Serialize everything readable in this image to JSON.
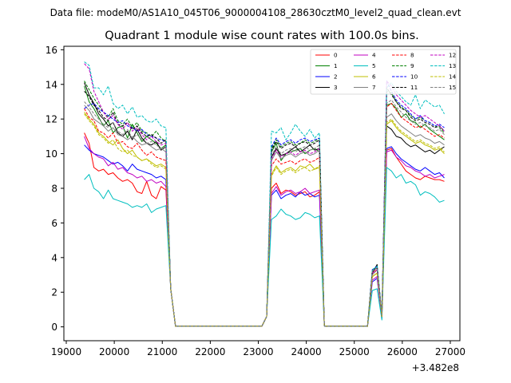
{
  "figure": {
    "suptitle": "Data file: modeM0/AS1A10_045T06_9000004108_28630cztM0_level2_quad_clean.evt"
  },
  "chart_data": {
    "type": "line",
    "title": "Quadrant 1 module wise count rates with 100.0s bins.",
    "xlabel": "",
    "ylabel": "",
    "x_offset_label": "+3.482e8",
    "xlim": [
      18950,
      27200
    ],
    "ylim": [
      -0.8,
      16.2
    ],
    "x_ticks": [
      19000,
      20000,
      21000,
      22000,
      23000,
      24000,
      25000,
      26000,
      27000
    ],
    "x_tick_labels": [
      "19000",
      "20000",
      "21000",
      "22000",
      "23000",
      "24000",
      "25000",
      "26000",
      "27000"
    ],
    "y_ticks": [
      0,
      2,
      4,
      6,
      8,
      10,
      12,
      14,
      16
    ],
    "y_tick_labels": [
      "0",
      "2",
      "4",
      "6",
      "8",
      "10",
      "12",
      "14",
      "16"
    ],
    "legend_position": "top-right",
    "time_segments": [
      {
        "start": 19375,
        "end": 21175
      },
      {
        "start": 21175,
        "end": 23275
      },
      {
        "start": 23275,
        "end": 24375
      },
      {
        "start": 24375,
        "end": 25375
      },
      {
        "start": 25375,
        "end": 25675
      },
      {
        "start": 25675,
        "end": 26875
      }
    ],
    "series": [
      {
        "name": "0",
        "color": "#ff0000",
        "dash": "solid",
        "seg1": [
          11.2,
          10.6,
          9.2,
          9.0,
          9.1,
          8.8,
          8.9,
          8.6,
          8.4,
          8.5,
          8.3,
          7.8,
          7.7,
          8.4,
          7.6,
          7.4,
          8.1,
          7.9,
          7.2
        ],
        "seg3": [
          8.0,
          8.3,
          7.7,
          7.9,
          7.8,
          7.6,
          7.7,
          7.8,
          7.5,
          7.6,
          7.8,
          7.2
        ],
        "seg5": [
          2.6,
          2.9,
          3.1,
          0.6
        ],
        "seg6": [
          10.2,
          10.3,
          9.8,
          9.4,
          9.0,
          8.8,
          8.6,
          8.5,
          8.7,
          8.6,
          8.5,
          8.5,
          8.4
        ]
      },
      {
        "name": "1",
        "color": "#008000",
        "dash": "solid",
        "seg1": [
          13.9,
          13.0,
          12.6,
          12.1,
          11.6,
          11.9,
          11.2,
          11.5,
          11.6,
          10.9,
          11.7,
          11.2,
          10.7,
          11.0,
          10.8,
          10.6,
          10.3,
          10.5,
          9.9
        ],
        "seg3": [
          10.1,
          10.6,
          9.6,
          10.0,
          10.1,
          10.2,
          10.3,
          10.0,
          10.2,
          10.3,
          10.1,
          10.4
        ],
        "seg5": [
          2.9,
          3.2,
          3.4,
          0.7
        ],
        "seg6": [
          12.8,
          12.9,
          12.6,
          12.1,
          12.3,
          11.9,
          11.8,
          11.5,
          11.7,
          11.4,
          11.2,
          11.0,
          10.8
        ]
      },
      {
        "name": "2",
        "color": "#0000ff",
        "dash": "solid",
        "seg1": [
          10.5,
          10.2,
          10.0,
          9.9,
          9.8,
          9.6,
          9.4,
          9.5,
          9.3,
          9.0,
          9.4,
          9.1,
          9.0,
          8.9,
          8.8,
          8.6,
          8.7,
          8.5,
          8.2
        ],
        "seg3": [
          7.6,
          7.9,
          7.4,
          7.6,
          7.7,
          7.5,
          7.8,
          7.6,
          7.7,
          7.5,
          7.6,
          7.8
        ],
        "seg5": [
          2.3,
          2.6,
          2.8,
          0.5
        ],
        "seg6": [
          10.3,
          10.4,
          10.0,
          9.7,
          9.5,
          9.3,
          9.1,
          9.0,
          9.2,
          9.0,
          8.8,
          8.9,
          8.6
        ]
      },
      {
        "name": "3",
        "color": "#000000",
        "dash": "solid",
        "seg1": [
          14.1,
          13.4,
          12.9,
          12.3,
          12.0,
          11.6,
          11.8,
          11.2,
          11.0,
          11.3,
          10.8,
          11.4,
          10.9,
          10.6,
          10.5,
          10.7,
          10.2,
          10.4,
          10.1
        ],
        "seg3": [
          9.8,
          10.3,
          9.9,
          10.0,
          10.2,
          10.4,
          10.1,
          10.3,
          10.5,
          10.2,
          10.3,
          10.6
        ],
        "seg5": [
          2.8,
          3.1,
          3.6,
          0.7
        ],
        "seg6": [
          11.6,
          11.4,
          11.0,
          10.9,
          10.6,
          10.4,
          10.5,
          10.3,
          10.1,
          10.2,
          10.0,
          10.2,
          10.4
        ]
      },
      {
        "name": "4",
        "color": "#c000c0",
        "dash": "solid",
        "seg1": [
          11.0,
          10.3,
          10.0,
          9.8,
          9.7,
          9.3,
          9.5,
          9.1,
          9.2,
          8.9,
          8.8,
          8.6,
          8.7,
          8.4,
          8.5,
          8.3,
          8.4,
          8.1,
          7.9
        ],
        "seg3": [
          7.7,
          8.1,
          7.6,
          7.8,
          7.9,
          7.7,
          7.8,
          8.0,
          7.7,
          7.8,
          7.9,
          7.6
        ],
        "seg5": [
          2.4,
          2.7,
          2.9,
          0.5
        ],
        "seg6": [
          10.1,
          10.2,
          9.8,
          9.6,
          9.3,
          9.2,
          9.0,
          8.9,
          8.7,
          8.8,
          8.6,
          8.7,
          8.8
        ]
      },
      {
        "name": "5",
        "color": "#00bfbf",
        "dash": "solid",
        "seg1": [
          8.5,
          8.8,
          8.0,
          7.8,
          7.4,
          7.9,
          7.4,
          7.3,
          7.2,
          7.1,
          6.9,
          7.0,
          6.9,
          7.1,
          6.6,
          6.8,
          6.9,
          7.0,
          6.8
        ],
        "seg3": [
          6.2,
          6.4,
          6.8,
          6.5,
          6.4,
          6.2,
          6.3,
          6.6,
          6.5,
          6.3,
          6.4,
          6.0
        ],
        "seg5": [
          1.9,
          2.1,
          2.2,
          0.4
        ],
        "seg6": [
          9.2,
          9.0,
          8.6,
          8.8,
          8.3,
          8.4,
          8.2,
          7.6,
          7.8,
          7.7,
          7.5,
          7.2,
          7.3
        ]
      },
      {
        "name": "6",
        "color": "#bfbf00",
        "dash": "solid",
        "seg1": [
          12.4,
          12.0,
          11.7,
          11.2,
          11.0,
          10.7,
          10.5,
          10.8,
          10.3,
          10.0,
          10.2,
          9.8,
          9.6,
          9.7,
          9.5,
          9.3,
          9.4,
          9.2,
          9.0
        ],
        "seg3": [
          8.8,
          9.3,
          8.9,
          9.1,
          9.2,
          9.0,
          9.3,
          9.2,
          9.4,
          9.1,
          9.2,
          9.0
        ],
        "seg5": [
          2.6,
          2.9,
          3.1,
          0.6
        ],
        "seg6": [
          11.7,
          11.9,
          11.5,
          11.2,
          11.0,
          10.8,
          10.6,
          10.7,
          10.5,
          10.4,
          10.2,
          10.3,
          10.0
        ]
      },
      {
        "name": "7",
        "color": "#808080",
        "dash": "solid",
        "seg1": [
          12.8,
          12.5,
          12.0,
          11.8,
          11.6,
          11.3,
          11.5,
          11.1,
          11.0,
          10.8,
          11.0,
          10.7,
          10.5,
          10.6,
          10.4,
          10.2,
          10.3,
          10.1,
          10.0
        ],
        "seg3": [
          9.6,
          10.1,
          9.7,
          9.9,
          10.0,
          9.8,
          10.0,
          10.1,
          9.9,
          10.0,
          10.2,
          9.9
        ],
        "seg5": [
          2.7,
          3.0,
          3.3,
          0.6
        ],
        "seg6": [
          12.1,
          12.3,
          11.9,
          11.6,
          11.4,
          11.2,
          11.0,
          11.1,
          10.9,
          10.8,
          10.6,
          10.7,
          10.5
        ]
      },
      {
        "name": "8",
        "color": "#ff0000",
        "dash": "dashed",
        "seg1": [
          12.6,
          12.1,
          11.9,
          11.3,
          11.2,
          10.9,
          11.2,
          10.6,
          10.7,
          10.4,
          10.3,
          10.6,
          10.2,
          9.9,
          10.1,
          9.8,
          9.7,
          9.6,
          9.4
        ],
        "seg3": [
          9.3,
          9.7,
          9.4,
          9.5,
          9.6,
          9.4,
          9.6,
          9.7,
          9.5,
          9.6,
          9.8,
          9.5
        ],
        "seg5": [
          2.8,
          3.1,
          3.3,
          0.6
        ],
        "seg6": [
          12.7,
          12.9,
          12.5,
          12.1,
          11.9,
          11.7,
          11.5,
          11.6,
          11.4,
          11.2,
          11.0,
          11.1,
          10.9
        ]
      },
      {
        "name": "9",
        "color": "#008000",
        "dash": "dashed",
        "seg1": [
          14.2,
          13.7,
          13.2,
          12.8,
          12.4,
          12.1,
          12.6,
          11.9,
          11.7,
          12.0,
          11.5,
          11.8,
          11.3,
          11.2,
          11.0,
          11.3,
          10.9,
          10.7,
          10.5
        ],
        "seg3": [
          10.3,
          10.8,
          10.4,
          10.6,
          10.7,
          10.5,
          10.6,
          10.8,
          10.6,
          10.7,
          10.9,
          10.6
        ],
        "seg5": [
          3.0,
          3.3,
          3.5,
          0.7
        ],
        "seg6": [
          13.6,
          13.5,
          13.0,
          12.7,
          12.5,
          12.2,
          12.0,
          12.1,
          11.9,
          11.8,
          11.6,
          11.5,
          11.2
        ]
      },
      {
        "name": "10",
        "color": "#0000ff",
        "dash": "dashed",
        "seg1": [
          12.6,
          12.8,
          12.9,
          12.6,
          12.4,
          12.2,
          12.0,
          11.8,
          11.9,
          11.6,
          11.5,
          11.3,
          11.4,
          11.1,
          11.0,
          10.9,
          10.8,
          10.7,
          10.6
        ],
        "seg3": [
          10.4,
          10.9,
          10.5,
          10.7,
          10.8,
          10.6,
          10.8,
          10.9,
          10.7,
          10.8,
          10.9,
          10.6
        ],
        "seg5": [
          3.0,
          3.3,
          3.5,
          0.7
        ],
        "seg6": [
          14.2,
          13.6,
          13.1,
          12.8,
          12.6,
          12.3,
          12.0,
          12.2,
          11.9,
          11.8,
          11.6,
          11.7,
          11.5
        ]
      },
      {
        "name": "11",
        "color": "#000000",
        "dash": "dashed",
        "seg1": [
          13.6,
          13.3,
          12.8,
          12.5,
          12.1,
          11.9,
          12.4,
          11.7,
          11.6,
          11.8,
          11.4,
          11.6,
          11.2,
          11.0,
          11.1,
          10.9,
          10.6,
          10.8,
          10.6
        ],
        "seg3": [
          10.2,
          10.7,
          10.3,
          10.5,
          10.6,
          10.4,
          10.6,
          10.7,
          10.5,
          10.6,
          10.8,
          10.5
        ],
        "seg5": [
          2.9,
          3.2,
          3.4,
          0.7
        ],
        "seg6": [
          13.8,
          13.4,
          13.0,
          12.6,
          12.5,
          12.1,
          11.9,
          12.0,
          11.8,
          11.7,
          11.5,
          11.6,
          11.3
        ]
      },
      {
        "name": "12",
        "color": "#c000c0",
        "dash": "dashed",
        "seg1": [
          15.2,
          14.9,
          13.6,
          13.0,
          12.4,
          12.0,
          12.2,
          11.7,
          11.4,
          11.8,
          11.3,
          11.5,
          11.1,
          10.8,
          11.0,
          10.7,
          10.5,
          10.6,
          10.3
        ],
        "seg3": [
          9.7,
          10.2,
          9.8,
          10.0,
          10.1,
          9.9,
          10.1,
          10.2,
          10.0,
          10.1,
          10.3,
          10.0
        ],
        "seg5": [
          2.8,
          3.1,
          3.3,
          0.6
        ],
        "seg6": [
          14.2,
          13.9,
          13.4,
          13.1,
          12.8,
          12.5,
          12.3,
          12.1,
          12.2,
          12.0,
          11.8,
          11.6,
          11.3
        ]
      },
      {
        "name": "13",
        "color": "#00bfbf",
        "dash": "dashed",
        "seg1": [
          15.3,
          15.1,
          13.8,
          13.8,
          13.4,
          13.9,
          12.9,
          12.6,
          12.8,
          12.3,
          12.7,
          12.1,
          12.2,
          11.9,
          11.8,
          12.0,
          11.6,
          11.5,
          11.2
        ],
        "seg3": [
          11.3,
          11.2,
          11.5,
          10.8,
          11.2,
          11.7,
          11.3,
          11.0,
          11.4,
          10.9,
          11.2,
          10.8
        ],
        "seg5": [
          3.0,
          3.3,
          3.5,
          0.7
        ],
        "seg6": [
          13.8,
          14.1,
          13.6,
          13.3,
          13.0,
          12.8,
          13.4,
          12.6,
          13.1,
          12.9,
          12.7,
          12.8,
          12.3
        ]
      },
      {
        "name": "14",
        "color": "#bfbf00",
        "dash": "dashed",
        "seg1": [
          12.3,
          11.9,
          11.6,
          11.1,
          10.9,
          10.6,
          10.8,
          10.3,
          10.1,
          10.2,
          9.9,
          9.8,
          9.6,
          9.7,
          9.4,
          9.2,
          9.3,
          9.1,
          8.9
        ],
        "seg3": [
          8.7,
          9.2,
          8.8,
          9.0,
          9.1,
          8.9,
          9.1,
          9.2,
          9.0,
          9.1,
          9.3,
          9.0
        ],
        "seg5": [
          2.6,
          2.9,
          3.1,
          0.6
        ],
        "seg6": [
          11.8,
          12.0,
          11.6,
          11.3,
          11.1,
          10.9,
          10.7,
          10.8,
          10.6,
          10.5,
          10.3,
          10.4,
          10.1
        ]
      },
      {
        "name": "15",
        "color": "#808080",
        "dash": "dashed",
        "seg1": [
          13.0,
          12.7,
          12.3,
          12.0,
          11.7,
          11.5,
          11.8,
          11.3,
          11.1,
          11.4,
          10.9,
          11.1,
          10.8,
          10.6,
          10.7,
          10.5,
          10.3,
          10.4,
          10.2
        ],
        "seg3": [
          9.9,
          10.4,
          10.0,
          10.2,
          10.3,
          10.1,
          10.3,
          10.4,
          10.2,
          10.3,
          10.5,
          10.2
        ],
        "seg5": [
          2.9,
          3.2,
          3.4,
          0.7
        ],
        "seg6": [
          12.9,
          13.1,
          12.7,
          12.4,
          12.1,
          11.9,
          11.7,
          11.8,
          11.6,
          11.5,
          11.3,
          11.4,
          11.1
        ]
      }
    ]
  }
}
